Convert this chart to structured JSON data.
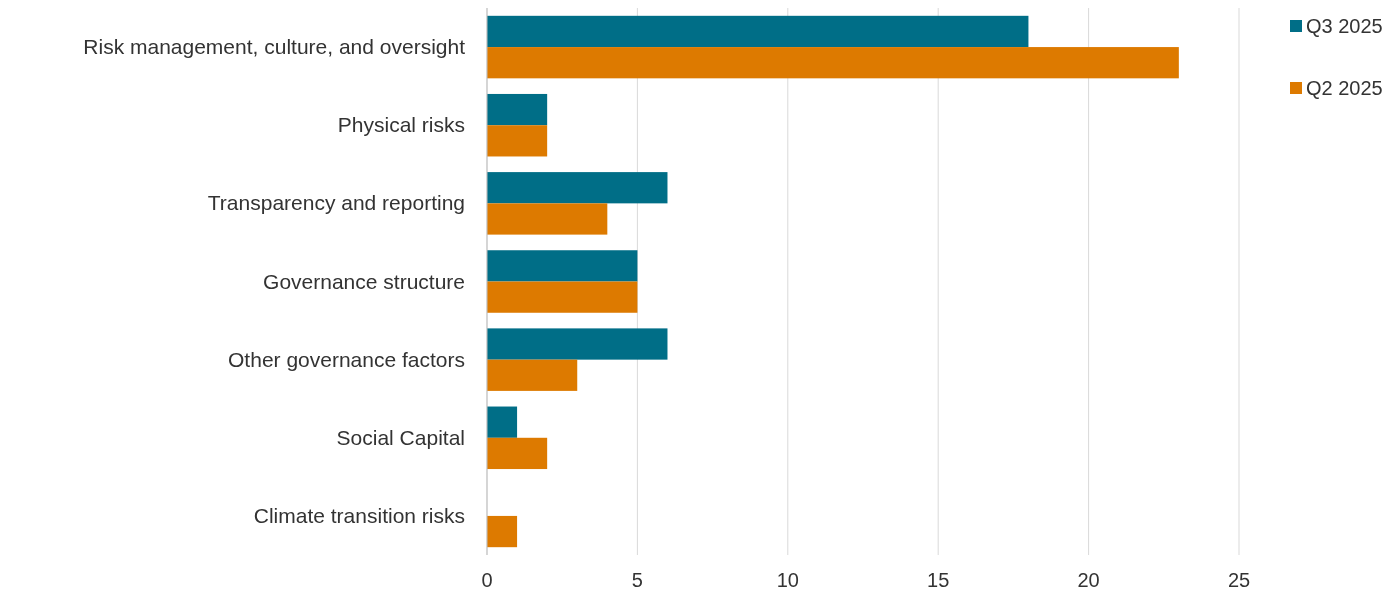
{
  "chart_data": {
    "type": "bar",
    "orientation": "horizontal",
    "categories": [
      "Risk management, culture, and oversight",
      "Physical risks",
      "Transparency and reporting",
      "Governance structure",
      "Other governance factors",
      "Social Capital",
      "Climate transition risks"
    ],
    "series": [
      {
        "name": "Q3 2025",
        "color": "#006e87",
        "values": [
          18,
          2,
          6,
          5,
          6,
          1,
          0
        ]
      },
      {
        "name": "Q2 2025",
        "color": "#dd7a00",
        "values": [
          23,
          2,
          4,
          5,
          3,
          2,
          1
        ]
      }
    ],
    "xlim": [
      0,
      25
    ],
    "xticks": [
      0,
      5,
      10,
      15,
      20,
      25
    ],
    "grid": "x",
    "legend": "top right"
  }
}
